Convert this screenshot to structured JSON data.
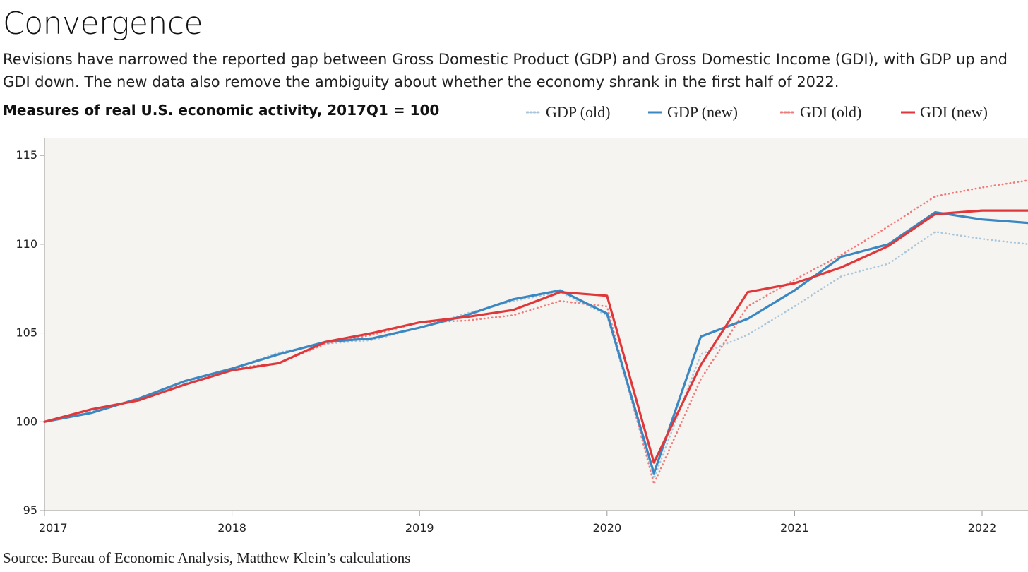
{
  "header": {
    "title": "Convergence",
    "subtitle": "Revisions have narrowed the reported gap between Gross Domestic Product (GDP) and Gross Domestic Income (GDI), with GDP up and GDI down. The new data also remove the ambiguity about whether the economy shrank in the first half of 2022.",
    "chart_label": "Measures of real U.S. economic activity, 2017Q1 = 100"
  },
  "source": "Source: Bureau of Economic Analysis, Matthew Klein’s calculations",
  "colors": {
    "gdp_old": "#a9c7dc",
    "gdp_new": "#3a87c2",
    "gdi_old": "#ef7b7b",
    "gdi_new": "#e0383a",
    "plot_bg": "#f6f4f0",
    "axis": "#999999"
  },
  "chart_data": {
    "type": "line",
    "title": "Measures of real U.S. economic activity, 2017Q1 = 100",
    "xlabel": "",
    "ylabel": "",
    "x": [
      "2017Q1",
      "2017Q2",
      "2017Q3",
      "2017Q4",
      "2018Q1",
      "2018Q2",
      "2018Q3",
      "2018Q4",
      "2019Q1",
      "2019Q2",
      "2019Q3",
      "2019Q4",
      "2020Q1",
      "2020Q2",
      "2020Q3",
      "2020Q4",
      "2021Q1",
      "2021Q2",
      "2021Q3",
      "2021Q4",
      "2022Q1",
      "2022Q2"
    ],
    "x_numeric": [
      2017.0,
      2017.25,
      2017.5,
      2017.75,
      2018.0,
      2018.25,
      2018.5,
      2018.75,
      2019.0,
      2019.25,
      2019.5,
      2019.75,
      2020.0,
      2020.25,
      2020.5,
      2020.75,
      2021.0,
      2021.25,
      2021.5,
      2021.75,
      2022.0,
      2022.25
    ],
    "xlim": [
      2017.0,
      2022.25
    ],
    "ylim": [
      95,
      116
    ],
    "x_ticks": [
      "2017",
      "2018",
      "2019",
      "2020",
      "2021",
      "2022"
    ],
    "y_ticks": [
      "95",
      "100",
      "105",
      "110",
      "115"
    ],
    "grid": false,
    "legend_position": "top-right",
    "series": [
      {
        "name": "GDP (old)",
        "key": "gdp_old",
        "style": "dotted",
        "values": [
          100.0,
          100.6,
          101.3,
          102.2,
          103.0,
          103.9,
          104.4,
          104.6,
          105.3,
          106.1,
          106.8,
          107.3,
          106.0,
          96.8,
          103.8,
          104.9,
          106.5,
          108.2,
          108.9,
          110.7,
          110.3,
          110.0
        ]
      },
      {
        "name": "GDP (new)",
        "key": "gdp_new",
        "style": "solid",
        "values": [
          100.0,
          100.5,
          101.3,
          102.3,
          103.0,
          103.8,
          104.5,
          104.7,
          105.3,
          106.0,
          106.9,
          107.4,
          106.1,
          97.1,
          104.8,
          105.8,
          107.4,
          109.3,
          110.0,
          111.8,
          111.4,
          111.2
        ]
      },
      {
        "name": "GDI (old)",
        "key": "gdi_old",
        "style": "dotted",
        "values": [
          100.0,
          100.7,
          101.2,
          102.1,
          103.0,
          103.3,
          104.4,
          104.9,
          105.6,
          105.7,
          106.0,
          106.8,
          106.5,
          96.5,
          102.4,
          106.5,
          108.0,
          109.4,
          111.0,
          112.7,
          113.2,
          113.6
        ]
      },
      {
        "name": "GDI (new)",
        "key": "gdi_new",
        "style": "solid",
        "values": [
          100.0,
          100.7,
          101.2,
          102.1,
          102.9,
          103.3,
          104.5,
          105.0,
          105.6,
          105.9,
          106.3,
          107.3,
          107.1,
          97.7,
          103.2,
          107.3,
          107.8,
          108.7,
          109.9,
          111.7,
          111.9,
          111.9
        ]
      }
    ]
  }
}
